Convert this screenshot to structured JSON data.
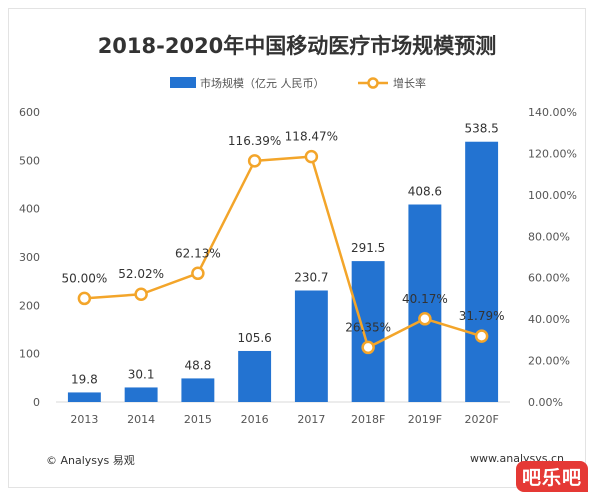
{
  "chart_data": {
    "type": "bar",
    "title": "2018-2020年中国移动医疗市场规模预测",
    "categories": [
      "2013",
      "2014",
      "2015",
      "2016",
      "2017",
      "2018F",
      "2019F",
      "2020F"
    ],
    "series": [
      {
        "name": "市场规模（亿元 人民币）",
        "type": "bar",
        "axis": "left",
        "color": "#2373d1",
        "values": [
          19.8,
          30.1,
          48.8,
          105.6,
          230.7,
          291.5,
          408.6,
          538.5
        ],
        "labels": [
          "19.8",
          "30.1",
          "48.8",
          "105.6",
          "230.7",
          "291.5",
          "408.6",
          "538.5"
        ]
      },
      {
        "name": "增长率",
        "type": "line",
        "axis": "right",
        "color": "#f3a52a",
        "values": [
          50.0,
          52.02,
          62.13,
          116.39,
          118.47,
          26.35,
          40.17,
          31.79
        ],
        "labels": [
          "50.00%",
          "52.02%",
          "62.13%",
          "116.39%",
          "118.47%",
          "26.35%",
          "40.17%",
          "31.79%"
        ]
      }
    ],
    "y_left": {
      "min": 0,
      "max": 600,
      "ticks": [
        "0",
        "100",
        "200",
        "300",
        "400",
        "500",
        "600"
      ]
    },
    "y_right": {
      "min": 0,
      "max": 140,
      "ticks": [
        "0.00%",
        "20.00%",
        "40.00%",
        "60.00%",
        "80.00%",
        "100.00%",
        "120.00%",
        "140.00%"
      ]
    },
    "legend_position": "top-center",
    "grid": false
  },
  "footer": {
    "source_left": "© Analysys 易观",
    "source_right": "www.analysys.cn"
  },
  "logo": {
    "text": "吧乐吧"
  }
}
